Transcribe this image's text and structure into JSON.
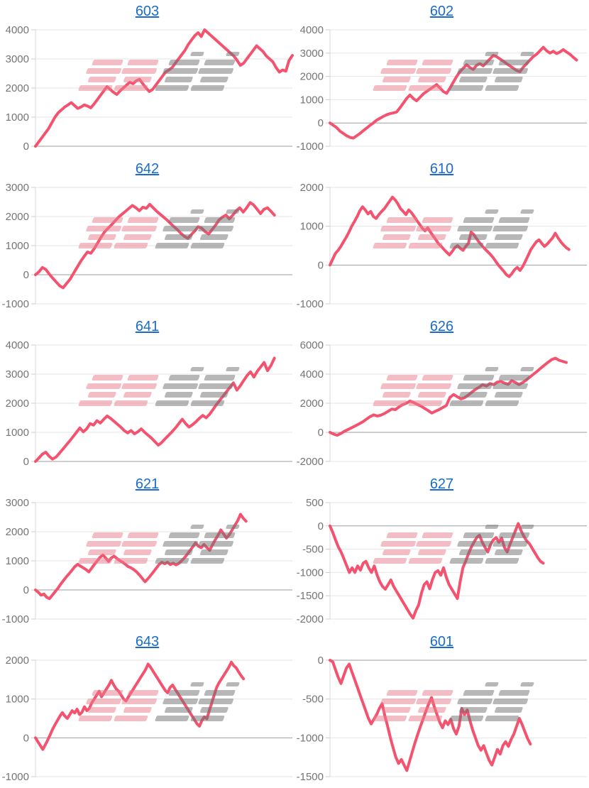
{
  "page": {
    "background": "#ffffff"
  },
  "style": {
    "line_color": "#F3536E",
    "grid_color": "#e6e6e6",
    "zero_line_color": "#9e9e9e",
    "axis_color": "#d9d9d9",
    "tick_color": "#cccccc",
    "label_color": "#757575",
    "title_color": "#1a6cc8"
  },
  "watermark": {
    "text": "みんかぶ",
    "pink_color": "#E77C8C",
    "gray_color": "#6f6f6f",
    "opacity": 0.5
  },
  "chart_data": [
    {
      "type": "line",
      "title": "603",
      "ylim": [
        0,
        4000
      ],
      "y_ticks": [
        0,
        1000,
        2000,
        3000,
        4000
      ],
      "x_end": 1.0,
      "values": [
        0,
        150,
        300,
        450,
        600,
        800,
        1000,
        1150,
        1250,
        1350,
        1420,
        1500,
        1400,
        1300,
        1350,
        1420,
        1380,
        1320,
        1450,
        1600,
        1750,
        1900,
        2050,
        1950,
        1850,
        1780,
        1900,
        2000,
        2100,
        2200,
        2150,
        2250,
        2300,
        2150,
        2000,
        1880,
        1950,
        2100,
        2250,
        2400,
        2550,
        2620,
        2700,
        2850,
        3000,
        3150,
        3300,
        3500,
        3650,
        3800,
        3900,
        3770,
        4000,
        3900,
        3800,
        3700,
        3600,
        3500,
        3400,
        3300,
        3200,
        3100,
        2950,
        2780,
        2850,
        3000,
        3150,
        3300,
        3450,
        3350,
        3250,
        3100,
        3000,
        2900,
        2700,
        2550,
        2620,
        2580,
        2950,
        3120
      ]
    },
    {
      "type": "line",
      "title": "602",
      "ylim": [
        -1000,
        4000
      ],
      "y_ticks": [
        -1000,
        0,
        1000,
        2000,
        3000,
        4000
      ],
      "x_end": 0.96,
      "values": [
        0,
        -100,
        -200,
        -350,
        -450,
        -550,
        -620,
        -650,
        -550,
        -450,
        -330,
        -220,
        -100,
        0,
        120,
        200,
        280,
        350,
        400,
        430,
        470,
        650,
        850,
        1050,
        1200,
        1050,
        950,
        1100,
        1250,
        1350,
        1450,
        1550,
        1650,
        1500,
        1350,
        1270,
        1500,
        1750,
        2000,
        2200,
        2350,
        2500,
        2380,
        2300,
        2480,
        2550,
        2450,
        2600,
        2750,
        2900,
        2850,
        2750,
        2650,
        2550,
        2450,
        2350,
        2250,
        2200,
        2400,
        2550,
        2700,
        2850,
        2950,
        3100,
        3250,
        3100,
        3000,
        3080,
        2980,
        3050,
        3150,
        3050,
        2950,
        2820,
        2700
      ]
    },
    {
      "type": "line",
      "title": "642",
      "ylim": [
        -1000,
        3000
      ],
      "y_ticks": [
        -1000,
        0,
        1000,
        2000,
        3000
      ],
      "x_end": 0.93,
      "values": [
        0,
        100,
        250,
        180,
        20,
        -120,
        -250,
        -380,
        -450,
        -300,
        -150,
        50,
        250,
        450,
        620,
        780,
        740,
        900,
        1100,
        1300,
        1480,
        1600,
        1720,
        1850,
        1980,
        2080,
        2180,
        2280,
        2380,
        2300,
        2200,
        2320,
        2280,
        2420,
        2300,
        2180,
        2080,
        1980,
        1880,
        1760,
        1650,
        1550,
        1420,
        1320,
        1250,
        1380,
        1500,
        1650,
        1600,
        1480,
        1400,
        1550,
        1700,
        1880,
        1980,
        2050,
        1920,
        2050,
        2200,
        2300,
        2150,
        2300,
        2480,
        2400,
        2250,
        2100,
        2250,
        2300,
        2180,
        2050
      ]
    },
    {
      "type": "line",
      "title": "610",
      "ylim": [
        -1000,
        2000
      ],
      "y_ticks": [
        -1000,
        0,
        1000,
        2000
      ],
      "x_end": 0.93,
      "values": [
        0,
        150,
        300,
        380,
        480,
        600,
        720,
        850,
        1000,
        1120,
        1250,
        1400,
        1500,
        1420,
        1320,
        1380,
        1250,
        1200,
        1300,
        1380,
        1450,
        1550,
        1650,
        1750,
        1680,
        1580,
        1450,
        1380,
        1300,
        1420,
        1350,
        1250,
        1150,
        1050,
        950,
        880,
        960,
        850,
        750,
        650,
        550,
        480,
        400,
        330,
        260,
        350,
        450,
        500,
        430,
        380,
        480,
        560,
        850,
        780,
        680,
        580,
        500,
        420,
        350,
        280,
        200,
        100,
        0,
        -80,
        -160,
        -250,
        -300,
        -220,
        -120,
        -60,
        -140,
        -40,
        100,
        250,
        400,
        500,
        600,
        650,
        560,
        480,
        540,
        620,
        700,
        820,
        700,
        600,
        520,
        450,
        400
      ]
    },
    {
      "type": "line",
      "title": "641",
      "ylim": [
        0,
        4000
      ],
      "y_ticks": [
        0,
        1000,
        2000,
        3000,
        4000
      ],
      "x_end": 0.93,
      "values": [
        0,
        120,
        250,
        320,
        180,
        80,
        150,
        280,
        420,
        560,
        700,
        850,
        1000,
        1150,
        1020,
        1120,
        1300,
        1250,
        1400,
        1320,
        1450,
        1560,
        1480,
        1380,
        1280,
        1180,
        1060,
        980,
        1060,
        950,
        1020,
        1120,
        1000,
        900,
        800,
        680,
        560,
        650,
        780,
        900,
        1020,
        1150,
        1300,
        1450,
        1300,
        1180,
        1260,
        1360,
        1480,
        1580,
        1500,
        1620,
        1780,
        1950,
        2100,
        2250,
        2400,
        2550,
        2700,
        2450,
        2600,
        2780,
        2950,
        3080,
        2900,
        3100,
        3250,
        3400,
        3120,
        3300,
        3550
      ]
    },
    {
      "type": "line",
      "title": "626",
      "ylim": [
        -2000,
        6000
      ],
      "y_ticks": [
        -2000,
        0,
        2000,
        4000,
        6000
      ],
      "x_end": 0.92,
      "values": [
        0,
        -120,
        -200,
        -80,
        80,
        200,
        320,
        450,
        580,
        720,
        900,
        1080,
        1200,
        1120,
        1180,
        1300,
        1450,
        1600,
        1560,
        1750,
        1900,
        2000,
        2150,
        2050,
        1920,
        1800,
        1650,
        1500,
        1320,
        1450,
        1560,
        1700,
        1850,
        2400,
        2600,
        2450,
        2300,
        2380,
        2550,
        2750,
        2950,
        3100,
        3280,
        3180,
        3350,
        3280,
        3450,
        3500,
        3380,
        3300,
        3550,
        3420,
        3280,
        3420,
        3600,
        3800,
        4000,
        4200,
        4420,
        4620,
        4820,
        5000,
        5100,
        4950,
        4880,
        4800
      ]
    },
    {
      "type": "line",
      "title": "621",
      "ylim": [
        -1000,
        3000
      ],
      "y_ticks": [
        -1000,
        0,
        1000,
        2000,
        3000
      ],
      "x_end": 0.82,
      "values": [
        0,
        -80,
        -180,
        -140,
        -250,
        -300,
        -180,
        -60,
        60,
        200,
        330,
        450,
        560,
        680,
        800,
        880,
        820,
        760,
        700,
        620,
        750,
        880,
        1000,
        1120,
        1200,
        1100,
        980,
        1100,
        1160,
        1080,
        1010,
        950,
        880,
        800,
        760,
        700,
        620,
        520,
        400,
        280,
        380,
        500,
        620,
        750,
        870,
        950,
        900,
        950,
        870,
        920,
        860,
        910,
        1000,
        1100,
        1220,
        1350,
        1480,
        1620,
        1500,
        1450,
        1560,
        1460,
        1360,
        1550,
        1720,
        1880,
        2060,
        1920,
        1780,
        1900,
        2060,
        2220,
        2380,
        2600,
        2460,
        2360
      ]
    },
    {
      "type": "line",
      "title": "627",
      "ylim": [
        -2000,
        500
      ],
      "y_ticks": [
        -2000,
        -1500,
        -1000,
        -500,
        0,
        500
      ],
      "x_end": 0.83,
      "values": [
        0,
        -140,
        -300,
        -450,
        -560,
        -700,
        -850,
        -1000,
        -900,
        -1000,
        -860,
        -950,
        -800,
        -760,
        -900,
        -1000,
        -860,
        -1050,
        -1200,
        -1300,
        -1360,
        -1260,
        -1160,
        -1300,
        -1400,
        -1500,
        -1600,
        -1700,
        -1800,
        -1900,
        -1980,
        -1820,
        -1700,
        -1450,
        -1260,
        -1200,
        -1350,
        -1150,
        -1000,
        -960,
        -1060,
        -900,
        -1100,
        -1260,
        -1360,
        -1460,
        -1560,
        -1200,
        -900,
        -760,
        -600,
        -460,
        -350,
        -250,
        -200,
        -350,
        -460,
        -560,
        -400,
        -300,
        -250,
        -350,
        -260,
        -460,
        -560,
        -400,
        -250,
        -100,
        50,
        -100,
        -220,
        -320,
        -380,
        -480,
        -580,
        -680,
        -760,
        -800
      ]
    },
    {
      "type": "line",
      "title": "643",
      "ylim": [
        -1000,
        2000
      ],
      "y_ticks": [
        -1000,
        0,
        1000,
        2000
      ],
      "x_end": 0.81,
      "values": [
        0,
        -100,
        -200,
        -300,
        -180,
        -60,
        80,
        220,
        340,
        450,
        560,
        650,
        560,
        500,
        600,
        700,
        640,
        740,
        600,
        660,
        800,
        700,
        760,
        900,
        1000,
        1100,
        1200,
        1060,
        1160,
        1260,
        1360,
        1480,
        1360,
        1260,
        1200,
        1100,
        1000,
        950,
        1060,
        1160,
        1260,
        1360,
        1460,
        1560,
        1660,
        1760,
        1900,
        1820,
        1720,
        1620,
        1520,
        1420,
        1320,
        1220,
        1160,
        1300,
        1360,
        1260,
        1160,
        1060,
        960,
        860,
        760,
        660,
        560,
        460,
        360,
        300,
        450,
        540,
        490,
        700,
        900,
        1100,
        1300,
        1420,
        1520,
        1620,
        1720,
        1820,
        1950,
        1860,
        1800,
        1700,
        1600,
        1520
      ]
    },
    {
      "type": "line",
      "title": "601",
      "ylim": [
        -1500,
        0
      ],
      "y_ticks": [
        -1500,
        -1000,
        -500,
        0
      ],
      "x_end": 0.78,
      "values": [
        0,
        -20,
        -120,
        -220,
        -300,
        -200,
        -100,
        -50,
        -150,
        -250,
        -350,
        -450,
        -550,
        -650,
        -750,
        -820,
        -760,
        -700,
        -620,
        -560,
        -720,
        -850,
        -1000,
        -1130,
        -1250,
        -1330,
        -1280,
        -1350,
        -1420,
        -1300,
        -1180,
        -1060,
        -950,
        -850,
        -750,
        -650,
        -560,
        -480,
        -600,
        -700,
        -800,
        -870,
        -780,
        -830,
        -760,
        -880,
        -950,
        -850,
        -620,
        -700,
        -640,
        -780,
        -900,
        -1000,
        -1100,
        -1160,
        -1100,
        -1200,
        -1290,
        -1350,
        -1250,
        -1150,
        -1210,
        -1100,
        -1050,
        -1110,
        -1020,
        -950,
        -850,
        -750,
        -830,
        -920,
        -1010,
        -1080
      ]
    }
  ]
}
